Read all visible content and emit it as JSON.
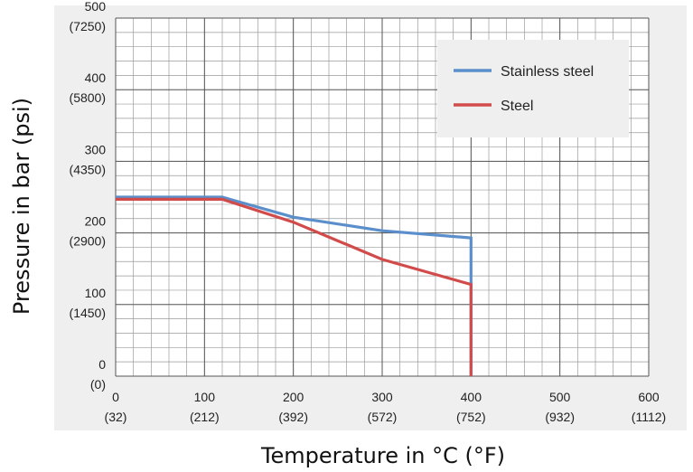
{
  "chart_data": {
    "type": "line",
    "xlabel": "Temperature in °C (°F)",
    "ylabel": "Pressure in bar (psi)",
    "xlim": [
      0,
      600
    ],
    "ylim": [
      0,
      500
    ],
    "grid": true,
    "legend_position": "top-right",
    "x_ticks": [
      {
        "value": 0,
        "label": "0",
        "sublabel": "(32)"
      },
      {
        "value": 100,
        "label": "100",
        "sublabel": "(212)"
      },
      {
        "value": 200,
        "label": "200",
        "sublabel": "(392)"
      },
      {
        "value": 300,
        "label": "300",
        "sublabel": "(572)"
      },
      {
        "value": 400,
        "label": "400",
        "sublabel": "(752)"
      },
      {
        "value": 500,
        "label": "500",
        "sublabel": "(932)"
      },
      {
        "value": 600,
        "label": "600",
        "sublabel": "(1112)"
      }
    ],
    "y_ticks": [
      {
        "value": 0,
        "label": "0",
        "sublabel": "(0)"
      },
      {
        "value": 100,
        "label": "100",
        "sublabel": "(1450)"
      },
      {
        "value": 200,
        "label": "200",
        "sublabel": "(2900)"
      },
      {
        "value": 300,
        "label": "300",
        "sublabel": "(4350)"
      },
      {
        "value": 400,
        "label": "400",
        "sublabel": "(5800)"
      },
      {
        "value": 500,
        "label": "500",
        "sublabel": "(7250)"
      }
    ],
    "series": [
      {
        "name": "Stainless steel",
        "color": "#5b8fcb",
        "x": [
          0,
          120,
          200,
          300,
          400,
          400
        ],
        "y": [
          250,
          250,
          222,
          203,
          193,
          0
        ]
      },
      {
        "name": "Steel",
        "color": "#d24b4b",
        "x": [
          0,
          120,
          200,
          300,
          400,
          400
        ],
        "y": [
          247,
          247,
          215,
          163,
          128,
          0
        ]
      }
    ]
  }
}
